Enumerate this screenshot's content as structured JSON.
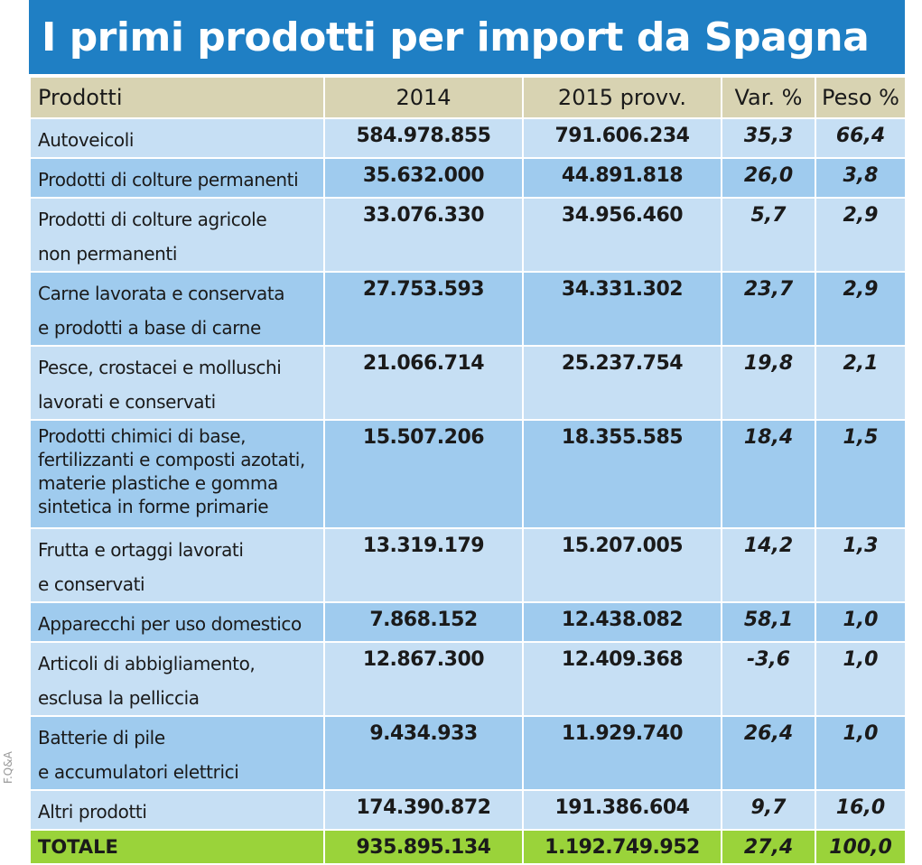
{
  "chart_data": {
    "type": "table",
    "title": "I primi prodotti per import da Spagna",
    "columns": [
      "Prodotti",
      "2014",
      "2015 provv.",
      "Var. %",
      "Peso %"
    ],
    "rows": [
      {
        "label_lines": [
          "Autoveicoli"
        ],
        "y2014": "584.978.855",
        "y2015": "791.606.234",
        "var": "35,3",
        "peso": "66,4"
      },
      {
        "label_lines": [
          "Prodotti di colture permanenti"
        ],
        "y2014": "35.632.000",
        "y2015": "44.891.818",
        "var": "26,0",
        "peso": "3,8"
      },
      {
        "label_lines": [
          "Prodotti di colture agricole",
          "non permanenti"
        ],
        "y2014": "33.076.330",
        "y2015": "34.956.460",
        "var": "5,7",
        "peso": "2,9"
      },
      {
        "label_lines": [
          "Carne lavorata e conservata",
          "e prodotti a base di carne"
        ],
        "y2014": "27.753.593",
        "y2015": "34.331.302",
        "var": "23,7",
        "peso": "2,9"
      },
      {
        "label_lines": [
          "Pesce, crostacei e molluschi",
          "lavorati e conservati"
        ],
        "y2014": "21.066.714",
        "y2015": "25.237.754",
        "var": "19,8",
        "peso": "2,1"
      },
      {
        "label_lines": [
          "Prodotti chimici di base,",
          "fertilizzanti e composti azotati,",
          "materie plastiche e gomma",
          "sintetica in forme primarie"
        ],
        "y2014": "15.507.206",
        "y2015": "18.355.585",
        "var": "18,4",
        "peso": "1,5"
      },
      {
        "label_lines": [
          "Frutta e ortaggi lavorati",
          "e conservati"
        ],
        "y2014": "13.319.179",
        "y2015": "15.207.005",
        "var": "14,2",
        "peso": "1,3"
      },
      {
        "label_lines": [
          "Apparecchi per uso domestico"
        ],
        "y2014": "7.868.152",
        "y2015": "12.438.082",
        "var": "58,1",
        "peso": "1,0"
      },
      {
        "label_lines": [
          "Articoli di abbigliamento,",
          "esclusa la pelliccia"
        ],
        "y2014": "12.867.300",
        "y2015": "12.409.368",
        "var": "-3,6",
        "peso": "1,0"
      },
      {
        "label_lines": [
          "Batterie di pile",
          "e accumulatori elettrici"
        ],
        "y2014": "9.434.933",
        "y2015": "11.929.740",
        "var": "26,4",
        "peso": "1,0"
      },
      {
        "label_lines": [
          "Altri prodotti"
        ],
        "y2014": "174.390.872",
        "y2015": "191.386.604",
        "var": "9,7",
        "peso": "16,0"
      }
    ],
    "total": {
      "label": "TOTALE",
      "y2014": "935.895.134",
      "y2015": "1.192.749.952",
      "var": "27,4",
      "peso": "100,0"
    }
  },
  "credit": "F.Q&A",
  "colors": {
    "title_bg": "#1f7fc4",
    "header_bg": "#d8d3b2",
    "row_light": "#c6dff4",
    "row_dark": "#9fcbee",
    "total_bg": "#9ad33a"
  }
}
